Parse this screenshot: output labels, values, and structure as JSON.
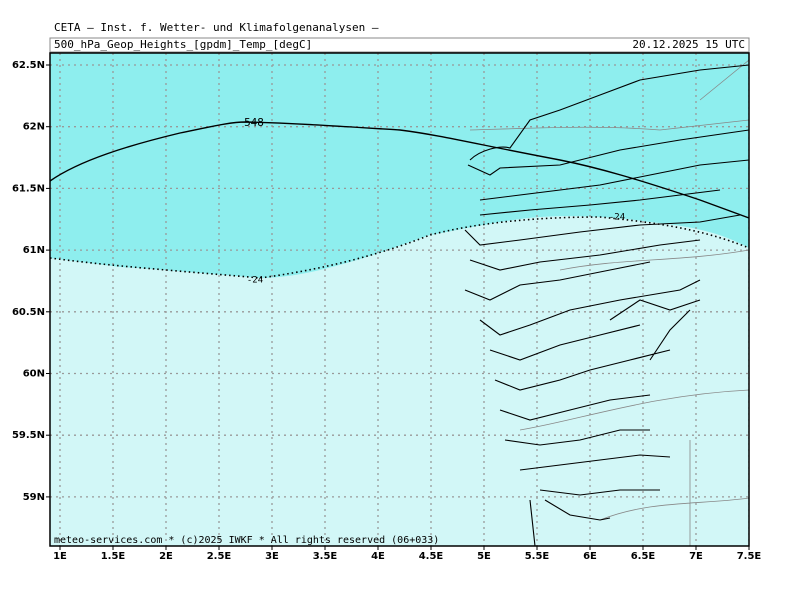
{
  "header": {
    "title": "CETA — Inst. f. Wetter- und Klimafolgenanalysen —",
    "subtitle": "500_hPa_Geop_Heights_[gpdm]_Temp_[degC]",
    "valid_time": "20.12.2025 15 UTC"
  },
  "map": {
    "lon_labels": [
      "1E",
      "1.5E",
      "2E",
      "2.5E",
      "3E",
      "3.5E",
      "4E",
      "4.5E",
      "5E",
      "5.5E",
      "6E",
      "6.5E",
      "7E",
      "7.5E"
    ],
    "lat_labels": [
      "62.5N",
      "62N",
      "61.5N",
      "61N",
      "60.5N",
      "60N",
      "59.5N",
      "59N"
    ],
    "height_label": "548",
    "temp_labels": [
      "-24",
      "-24"
    ]
  },
  "footer": "meteo-services.com * (c)2025 IWKF * All rights reserved (06+033)"
}
